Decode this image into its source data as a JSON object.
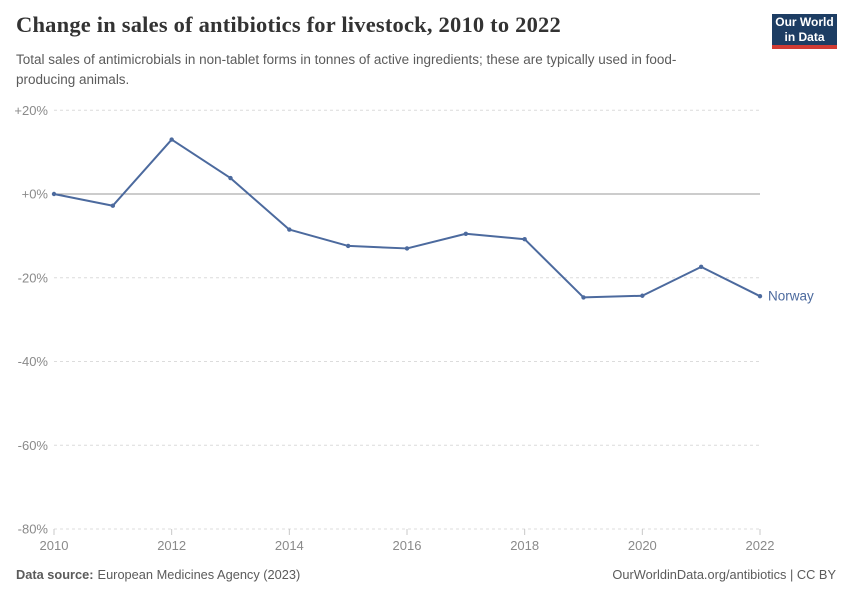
{
  "header": {
    "title": "Change in sales of antibiotics for livestock, 2010 to 2022",
    "subtitle": "Total sales of antimicrobials in non-tablet forms in tonnes of active ingredients; these are typically used in food-producing animals."
  },
  "logo": {
    "line1": "Our World",
    "line2": "in Data",
    "bg_color": "#1d3d63",
    "stripe_color": "#d13b33"
  },
  "chart_data": {
    "type": "line",
    "title": "Change in sales of antibiotics for livestock, 2010 to 2022",
    "unit": "%",
    "x": [
      2010,
      2011,
      2012,
      2013,
      2014,
      2015,
      2016,
      2017,
      2018,
      2019,
      2020,
      2021,
      2022
    ],
    "series": [
      {
        "name": "Norway",
        "color": "#4C6A9E",
        "values": [
          0,
          -2.8,
          13,
          3.8,
          -8.5,
          -12.4,
          -13,
          -9.5,
          -10.8,
          -24.7,
          -24.3,
          -17.4,
          -24.4
        ]
      }
    ],
    "y_axis": {
      "range": [
        -80,
        20
      ],
      "ticks": [
        {
          "value": 20,
          "label": "+20%"
        },
        {
          "value": 0,
          "label": "+0%"
        },
        {
          "value": -20,
          "label": "-20%"
        },
        {
          "value": -40,
          "label": "-40%"
        },
        {
          "value": -60,
          "label": "-60%"
        },
        {
          "value": -80,
          "label": "-80%"
        }
      ]
    },
    "x_axis": {
      "range": [
        2010,
        2022
      ],
      "ticks": [
        2010,
        2012,
        2014,
        2016,
        2018,
        2020,
        2022
      ]
    },
    "grid": "horizontal dashed, zero line solid",
    "legend_position": "end-of-line label"
  },
  "footer": {
    "source_label": "Data source:",
    "source_value": "European Medicines Agency (2023)",
    "credit": "OurWorldinData.org/antibiotics | CC BY"
  }
}
